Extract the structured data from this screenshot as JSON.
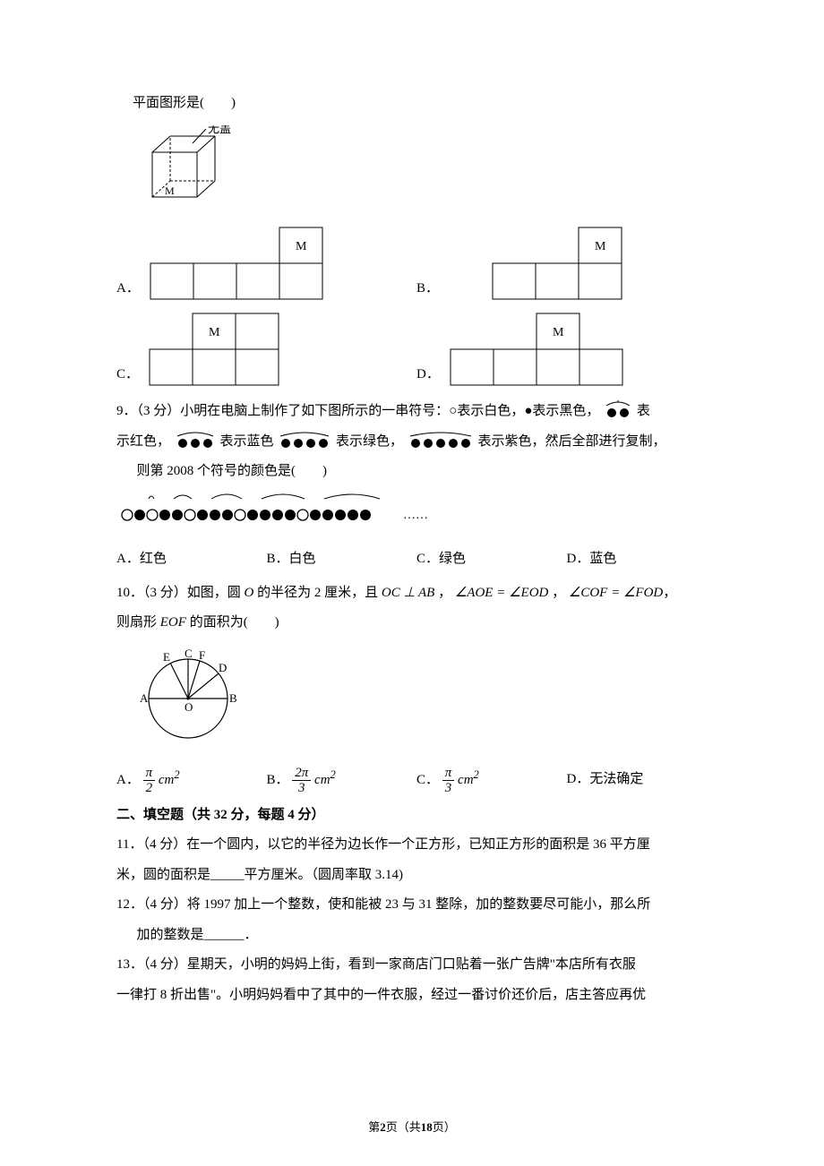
{
  "q8": {
    "stem": "平面图形是(　　)",
    "box_label": "无盖",
    "M": "M",
    "labels": [
      "A．",
      "B．",
      "C．",
      "D．"
    ]
  },
  "q9": {
    "stem_a": "9．（3 分）小明在电脑上制作了如下图所示的一串符号：○表示白色，●表示黑色，",
    "stem_b": "表",
    "stem_c": "示红色，",
    "stem_d": "表示蓝色",
    "stem_e": "表示绿色，",
    "stem_f": "表示紫色，然后全部进行复制，",
    "stem_g": "则第 2008 个符号的颜色是(　　)",
    "opts": {
      "A": "A．红色",
      "B": "B．白色",
      "C": "C．绿色",
      "D": "D．蓝色"
    }
  },
  "q10": {
    "stem_a": "10．（3 分）如图，圆 ",
    "stem_o": "O",
    "stem_b": " 的半径为 2 厘米，且 ",
    "eq1": "OC ⊥ AB",
    "sep": " ， ",
    "eq2": "∠AOE = ∠EOD",
    "eq3": "∠COF = ∠FOD",
    "stem_c": "则扇形 ",
    "eof": "EOF",
    "stem_d": " 的面积为(　　)",
    "labels_diag": {
      "A": "A",
      "B": "B",
      "C": "C",
      "D": "D",
      "E": "E",
      "F": "F",
      "O": "O"
    },
    "opts": {
      "A_label": "A．",
      "A_num": "π",
      "A_den": "2",
      "A_unit": "cm",
      "A_sup": "2",
      "B_label": "B．",
      "B_num": "2π",
      "B_den": "3",
      "C_label": "C．",
      "C_num": "π",
      "C_den": "3",
      "D_label": "D．无法确定"
    }
  },
  "section2": "二、填空题（共 32 分，每题 4 分）",
  "q11": {
    "a": "11．（4 分）在一个圆内，以它的半径为边长作一个正方形，已知正方形的面积是 36 平方厘",
    "b": "米，圆的面积是_____平方厘米。（圆周率取 3.14)"
  },
  "q12": {
    "a": "12．（4 分）将 1997 加上一个整数，使和能被 23 与 31 整除，加的整数要尽可能小，那么所",
    "b": "加的整数是______．"
  },
  "q13": {
    "a": "13．（4 分）星期天，小明的妈妈上街，看到一家商店门口贴着一张广告牌\"本店所有衣服",
    "b": "一律打 8 折出售\"。小明妈妈看中了其中的一件衣服，经过一番讨价还价后，店主答应再优"
  },
  "footer": {
    "a": "第",
    "page": "2",
    "b": "页（共",
    "total": "18",
    "c": "页）"
  },
  "style": {
    "stroke": "#000000",
    "fill_white": "#ffffff",
    "fill_black": "#000000",
    "font_size_svg": 14
  }
}
